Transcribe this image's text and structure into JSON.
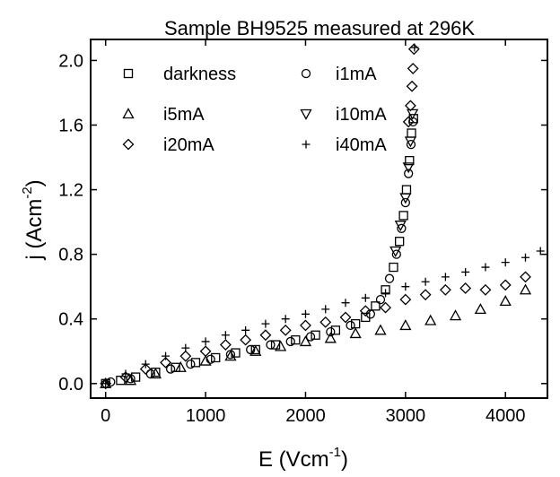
{
  "chart_data": {
    "type": "scatter",
    "title": "Sample BH9525 measured at 296K",
    "xlabel_base": "E (Vcm",
    "xlabel_sup": "-1",
    "xlabel_end": ")",
    "ylabel_base": "j (Acm",
    "ylabel_sup": "-2",
    "ylabel_end": ")",
    "xlim": [
      -150,
      4420
    ],
    "ylim": [
      -0.09,
      2.13
    ],
    "xticks": [
      0,
      1000,
      2000,
      3000,
      4000
    ],
    "xtick_labels": [
      "0",
      "1000",
      "2000",
      "3000",
      "4000"
    ],
    "yticks": [
      0.0,
      0.4,
      0.8,
      1.2,
      1.6,
      2.0
    ],
    "ytick_labels": [
      "0.0",
      "0.4",
      "0.8",
      "1.2",
      "1.6",
      "2.0"
    ],
    "grid": false,
    "legend_position": "top-left",
    "series": [
      {
        "name": "darkness",
        "marker": "square",
        "points": [
          [
            0,
            0.0
          ],
          [
            150,
            0.02
          ],
          [
            300,
            0.04
          ],
          [
            500,
            0.07
          ],
          [
            700,
            0.1
          ],
          [
            900,
            0.13
          ],
          [
            1100,
            0.16
          ],
          [
            1300,
            0.19
          ],
          [
            1500,
            0.21
          ],
          [
            1700,
            0.24
          ],
          [
            1900,
            0.27
          ],
          [
            2100,
            0.3
          ],
          [
            2300,
            0.33
          ],
          [
            2500,
            0.37
          ],
          [
            2600,
            0.41
          ],
          [
            2700,
            0.48
          ],
          [
            2800,
            0.58
          ],
          [
            2880,
            0.72
          ],
          [
            2940,
            0.88
          ],
          [
            2980,
            1.04
          ],
          [
            3010,
            1.2
          ],
          [
            3040,
            1.38
          ],
          [
            3060,
            1.55
          ],
          [
            3080,
            1.64
          ]
        ]
      },
      {
        "name": "i1mA",
        "marker": "circle",
        "points": [
          [
            50,
            0.01
          ],
          [
            250,
            0.03
          ],
          [
            450,
            0.06
          ],
          [
            650,
            0.09
          ],
          [
            850,
            0.12
          ],
          [
            1050,
            0.15
          ],
          [
            1250,
            0.18
          ],
          [
            1450,
            0.21
          ],
          [
            1650,
            0.24
          ],
          [
            1850,
            0.26
          ],
          [
            2050,
            0.29
          ],
          [
            2250,
            0.32
          ],
          [
            2450,
            0.36
          ],
          [
            2650,
            0.43
          ],
          [
            2750,
            0.52
          ],
          [
            2840,
            0.65
          ],
          [
            2910,
            0.8
          ],
          [
            2960,
            0.96
          ],
          [
            3000,
            1.12
          ],
          [
            3030,
            1.3
          ],
          [
            3055,
            1.48
          ],
          [
            3075,
            1.62
          ]
        ]
      },
      {
        "name": "i5mA",
        "marker": "triangle-up",
        "points": [
          [
            0,
            0.0
          ],
          [
            250,
            0.02
          ],
          [
            500,
            0.06
          ],
          [
            750,
            0.1
          ],
          [
            1000,
            0.14
          ],
          [
            1250,
            0.17
          ],
          [
            1500,
            0.2
          ],
          [
            1750,
            0.23
          ],
          [
            2000,
            0.26
          ],
          [
            2250,
            0.28
          ],
          [
            2500,
            0.31
          ],
          [
            2750,
            0.33
          ],
          [
            3000,
            0.36
          ],
          [
            3250,
            0.39
          ],
          [
            3500,
            0.42
          ],
          [
            3750,
            0.46
          ],
          [
            4000,
            0.51
          ],
          [
            4200,
            0.58
          ]
        ]
      },
      {
        "name": "i10mA",
        "marker": "triangle-down",
        "points": [
          [
            2900,
            0.82
          ],
          [
            2950,
            0.98
          ],
          [
            3000,
            1.15
          ],
          [
            3030,
            1.34
          ],
          [
            3050,
            1.5
          ],
          [
            3070,
            1.67
          ]
        ]
      },
      {
        "name": "i20mA",
        "marker": "diamond",
        "points": [
          [
            0,
            0.0
          ],
          [
            200,
            0.04
          ],
          [
            400,
            0.09
          ],
          [
            600,
            0.13
          ],
          [
            800,
            0.17
          ],
          [
            1000,
            0.2
          ],
          [
            1200,
            0.24
          ],
          [
            1400,
            0.27
          ],
          [
            1600,
            0.3
          ],
          [
            1800,
            0.33
          ],
          [
            2000,
            0.36
          ],
          [
            2200,
            0.38
          ],
          [
            2400,
            0.41
          ],
          [
            2600,
            0.45
          ],
          [
            2800,
            0.47
          ],
          [
            3000,
            0.52
          ],
          [
            3200,
            0.55
          ],
          [
            3400,
            0.58
          ],
          [
            3600,
            0.59
          ],
          [
            3800,
            0.58
          ],
          [
            4000,
            0.61
          ],
          [
            4200,
            0.66
          ],
          [
            3030,
            1.62
          ],
          [
            3050,
            1.72
          ],
          [
            3065,
            1.84
          ],
          [
            3075,
            1.95
          ],
          [
            3085,
            2.07
          ]
        ]
      },
      {
        "name": "i40mA",
        "marker": "plus",
        "points": [
          [
            0,
            0.0
          ],
          [
            200,
            0.06
          ],
          [
            400,
            0.12
          ],
          [
            600,
            0.17
          ],
          [
            800,
            0.22
          ],
          [
            1000,
            0.26
          ],
          [
            1200,
            0.3
          ],
          [
            1400,
            0.33
          ],
          [
            1600,
            0.37
          ],
          [
            1800,
            0.4
          ],
          [
            2000,
            0.43
          ],
          [
            2200,
            0.46
          ],
          [
            2400,
            0.5
          ],
          [
            2600,
            0.53
          ],
          [
            2800,
            0.56
          ],
          [
            3000,
            0.6
          ],
          [
            3200,
            0.63
          ],
          [
            3400,
            0.66
          ],
          [
            3600,
            0.69
          ],
          [
            3800,
            0.72
          ],
          [
            4000,
            0.75
          ],
          [
            4200,
            0.78
          ],
          [
            4350,
            0.82
          ],
          [
            3090,
            2.08
          ]
        ]
      }
    ]
  }
}
